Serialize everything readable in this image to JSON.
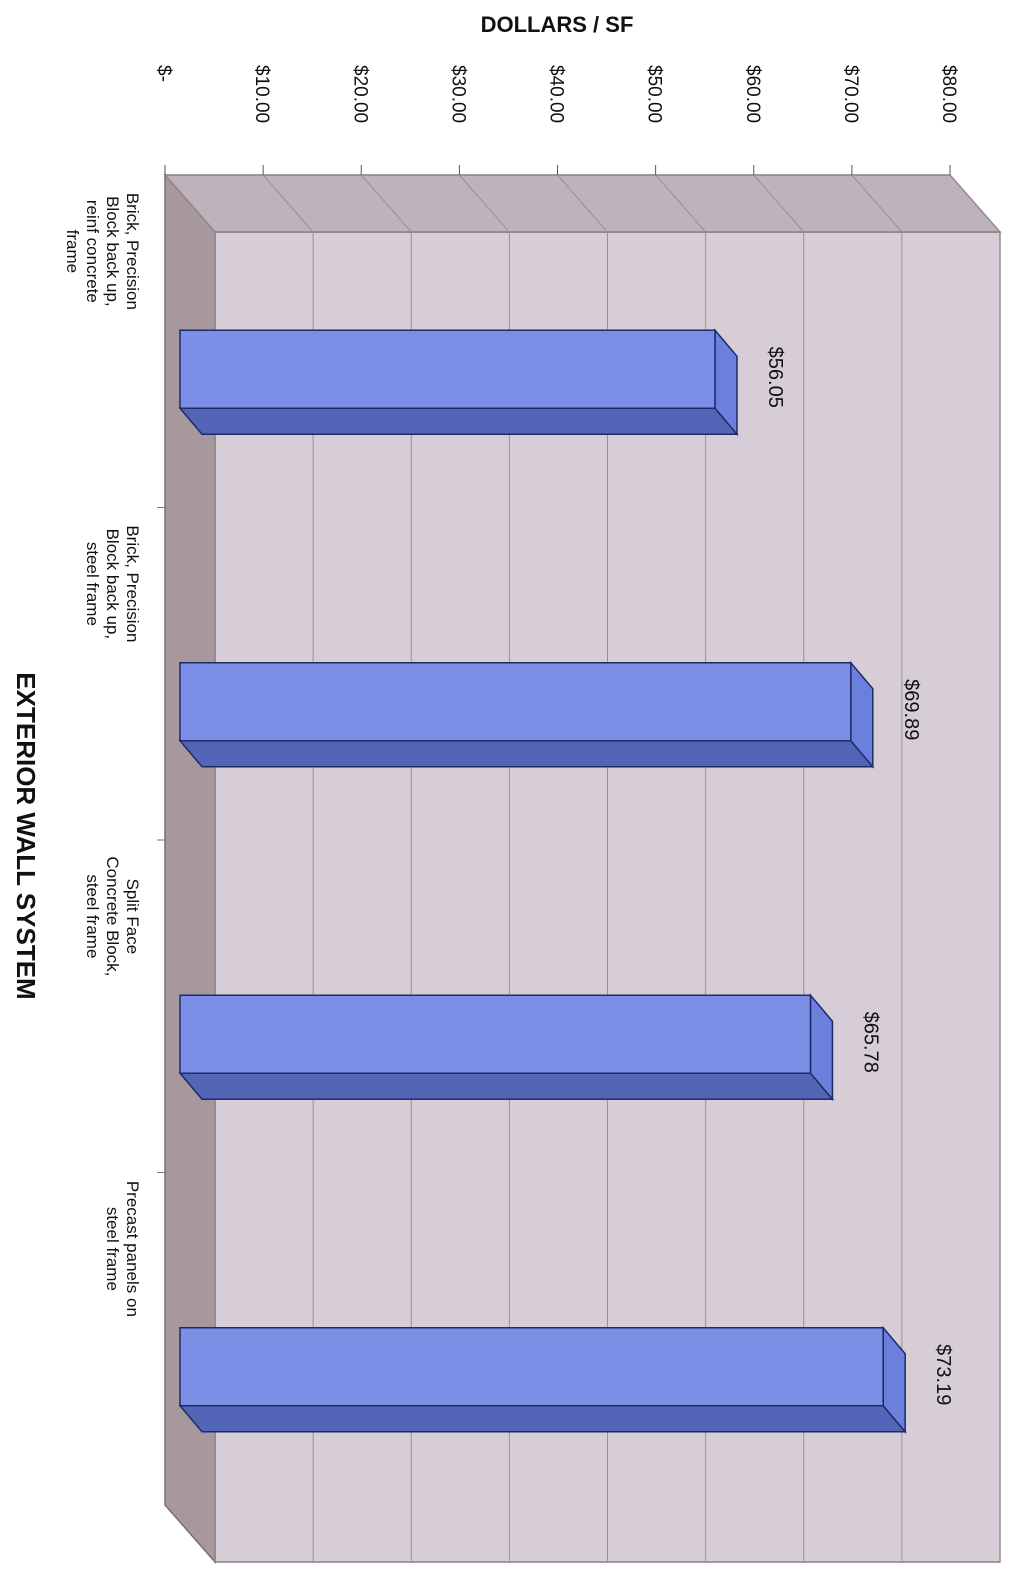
{
  "chart_data": {
    "type": "bar",
    "orientation": "horizontal, 3d",
    "value_axis_title": "DOLLARS / SF",
    "category_axis_title": "EXTERIOR WALL SYSTEM",
    "value_tick_labels": [
      "$-",
      "$10.00",
      "$20.00",
      "$30.00",
      "$40.00",
      "$50.00",
      "$60.00",
      "$70.00",
      "$80.00"
    ],
    "ylim": [
      0,
      80
    ],
    "grid": true,
    "categories": [
      [
        "Brick, Precision",
        "Block back up,",
        "reinf concrete",
        "frame"
      ],
      [
        "Brick, Precision",
        "Block back up,",
        "steel frame"
      ],
      [
        "Split Face",
        "Concrete Block,",
        "steel frame"
      ],
      [
        "Precast panels on",
        "steel frame"
      ]
    ],
    "values": [
      56.05,
      69.89,
      65.78,
      73.19
    ],
    "data_labels": [
      "$56.05",
      "$69.89",
      "$65.78",
      "$73.19"
    ],
    "colors": {
      "bar_front": "#7b8fe6",
      "bar_side": "#5365b6",
      "bar_top": "#6b7fdc",
      "plot_back": "#d6cdd6",
      "plot_floor": "#a7989e",
      "wall_side": "#bfb3bb"
    }
  }
}
